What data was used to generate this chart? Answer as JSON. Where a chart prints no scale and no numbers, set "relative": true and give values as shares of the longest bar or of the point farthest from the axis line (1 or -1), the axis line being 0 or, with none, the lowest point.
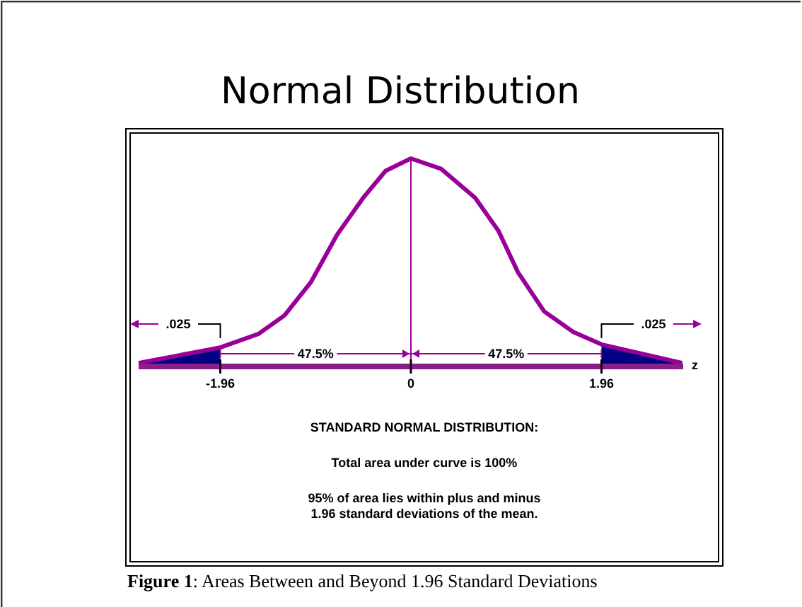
{
  "chart_data": {
    "type": "line",
    "title": "Normal Distribution",
    "xlabel": "z",
    "relative": true,
    "xlim": [
      -2.8,
      2.8
    ],
    "xticks": [
      -1.96,
      0,
      1.96
    ],
    "line_style": "solid",
    "series": [
      {
        "color": "#990099",
        "x": [
          -2.8,
          -1.96,
          -1.57,
          -1.3,
          -1.03,
          -0.76,
          -0.49,
          -0.26,
          0,
          0.31,
          0.66,
          0.9,
          1.1,
          1.37,
          1.67,
          1.96,
          2.79
        ],
        "values": [
          0.01,
          0.085,
          0.15,
          0.24,
          0.4,
          0.63,
          0.81,
          0.94,
          1,
          0.95,
          0.81,
          0.65,
          0.45,
          0.26,
          0.16,
          0.1,
          0.01
        ]
      },
      {
        "type": "area",
        "color": "#000080",
        "x": [
          -2.8,
          -1.96
        ],
        "values": [
          0.01,
          0.085
        ]
      },
      {
        "type": "area",
        "color": "#000080",
        "x": [
          1.96,
          2.79
        ],
        "values": [
          0.1,
          0.01
        ]
      }
    ],
    "ref_lines": [
      {
        "axis": "x",
        "value": 0,
        "color": "#990099"
      }
    ],
    "annotations": [
      ".025",
      ".025",
      "47.5%",
      "47.5%",
      "STANDARD NORMAL DISTRIBUTION:",
      "Total area under curve is 100%",
      "95% of area lies within plus and minus 1.96 standard deviations of the mean.",
      "Figure 1: Areas Between and Beyond 1.96 Standard Deviations"
    ]
  }
}
